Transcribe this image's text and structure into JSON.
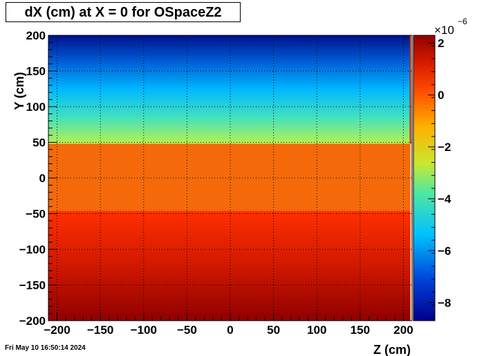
{
  "chart_data": {
    "type": "heatmap",
    "title": "dX (cm) at X = 0 for OSpaceZ2",
    "xlabel": "Z (cm)",
    "ylabel": "Y (cm)",
    "xlim": [
      -210,
      210
    ],
    "ylim": [
      -200,
      200
    ],
    "x_ticks": [
      -200,
      -150,
      -100,
      -50,
      0,
      50,
      100,
      150,
      200
    ],
    "x_tick_labels": [
      "−200",
      "−150",
      "−100",
      "−50",
      "0",
      "50",
      "100",
      "150",
      "200"
    ],
    "y_ticks": [
      -200,
      -150,
      -100,
      -50,
      0,
      50,
      100,
      150,
      200
    ],
    "y_tick_labels": [
      "−200",
      "−150",
      "−100",
      "−50",
      "0",
      "50",
      "100",
      "150",
      "200"
    ],
    "grid": true,
    "colorbar": {
      "range": [
        -8.7,
        2.3
      ],
      "ticks": [
        2,
        0,
        -2,
        -4,
        -6,
        -8
      ],
      "tick_labels": [
        "2",
        "0",
        "−2",
        "−4",
        "−6",
        "−8"
      ],
      "exponent_label": "×10",
      "exponent_sup": "−6",
      "colors": [
        "#00008b",
        "#0050e0",
        "#00c8ff",
        "#90e860",
        "#f0d800",
        "#ff7000",
        "#ff3000",
        "#b01000",
        "#800000"
      ]
    },
    "bands": [
      {
        "y_range": [
          48,
          200
        ],
        "value_bottom": -3.0,
        "value_top": -8.7,
        "description": "vertical gradient"
      },
      {
        "y_range": [
          -46,
          48
        ],
        "value": 0.3
      },
      {
        "y_range": [
          -200,
          -46
        ],
        "value_top": 0.9,
        "value_bottom": 2.3,
        "description": "vertical gradient"
      }
    ]
  },
  "footer": {
    "timestamp": "Fri May 10 16:50:14 2024"
  }
}
